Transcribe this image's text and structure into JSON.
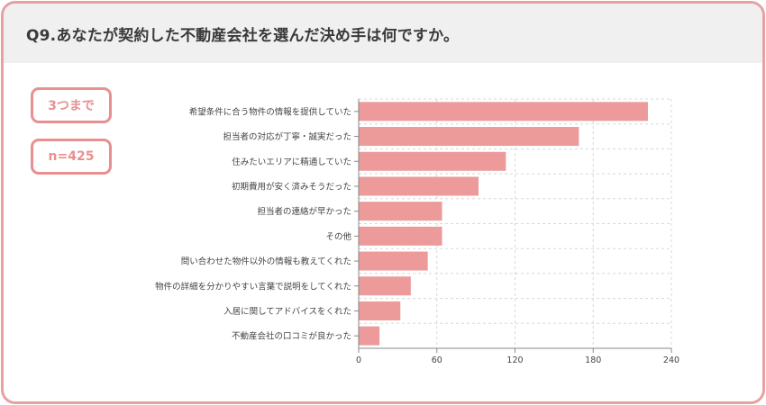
{
  "header": {
    "title": "Q9.あなたが契約した不動産会社を選んだ決め手は何ですか。"
  },
  "badges": {
    "limit": "3つまで",
    "sample": "n=425"
  },
  "colors": {
    "bar": "#ec9a9a",
    "border": "#e8a0a0",
    "header_bg": "#f0f0f0"
  },
  "chart_data": {
    "type": "bar",
    "orientation": "horizontal",
    "categories": [
      "希望条件に合う物件の情報を提供していた",
      "担当者の対応が丁寧・誠実だった",
      "住みたいエリアに精通していた",
      "初期費用が安く済みそうだった",
      "担当者の連絡が早かった",
      "その他",
      "問い合わせた物件以外の情報も教えてくれた",
      "物件の詳細を分かりやすい言葉で説明をしてくれた",
      "入居に関してアドバイスをくれた",
      "不動産会社の口コミが良かった"
    ],
    "values": [
      222,
      169,
      113,
      92,
      64,
      64,
      53,
      40,
      32,
      16
    ],
    "xlim": [
      0,
      240
    ],
    "xticks": [
      "0",
      "60",
      "120",
      "180",
      "240"
    ],
    "grid": true
  }
}
